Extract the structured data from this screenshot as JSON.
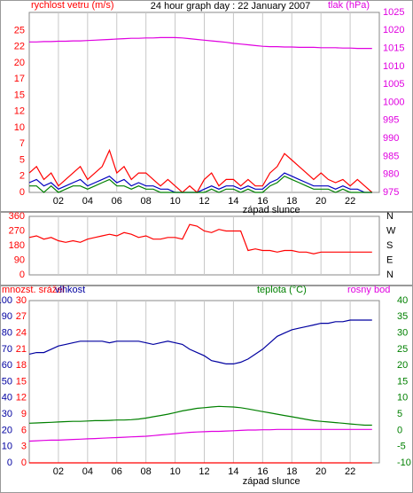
{
  "chart_data": [
    {
      "type": "line",
      "title": "24 hour graph day : 22 January 2007",
      "xlabel": "západ slunce",
      "x": [
        0,
        0.5,
        1,
        1.5,
        2,
        2.5,
        3,
        3.5,
        4,
        4.5,
        5,
        5.5,
        6,
        6.5,
        7,
        7.5,
        8,
        8.5,
        9,
        9.5,
        10,
        10.5,
        11,
        11.5,
        12,
        12.5,
        13,
        13.5,
        14,
        14.5,
        15,
        15.5,
        16,
        16.5,
        17,
        17.5,
        18,
        18.5,
        19,
        19.5,
        20,
        20.5,
        21,
        21.5,
        22,
        22.5,
        23,
        23.5
      ],
      "xlim": [
        0,
        24
      ],
      "xgrid": true,
      "xticks": [
        {
          "value": 2,
          "label": "02"
        },
        {
          "value": 4,
          "label": "04"
        },
        {
          "value": 6,
          "label": "06"
        },
        {
          "value": 8,
          "label": "08"
        },
        10,
        12,
        14,
        16,
        18,
        20,
        22
      ],
      "ylim": [
        0,
        27.8
      ],
      "yticks": [
        0,
        {
          "value": 2.5,
          "label": "2"
        },
        5,
        {
          "value": 7.5,
          "label": "7"
        },
        10,
        {
          "value": 12.5,
          "label": "12"
        },
        15,
        {
          "value": 17.5,
          "label": "17"
        },
        20,
        {
          "value": 22.5,
          "label": "22"
        },
        25
      ],
      "y2lim": [
        975,
        1025
      ],
      "y2ticks": [
        975,
        980,
        985,
        990,
        995,
        1000,
        1005,
        1010,
        1015,
        1020,
        1025
      ],
      "series": [
        {
          "name": "rychlost vetru (m/s)",
          "color": "#ff0000",
          "values": [
            3,
            4,
            2,
            3,
            1,
            2,
            3,
            4,
            2,
            3,
            4,
            6.5,
            3,
            4,
            2,
            3,
            3,
            2,
            1,
            2,
            1,
            0,
            1,
            0,
            2,
            3,
            1,
            2,
            2,
            1,
            2,
            1,
            1,
            3,
            4,
            6,
            5,
            4,
            3,
            2,
            3,
            2,
            1.5,
            2,
            1,
            2,
            1,
            0
          ]
        },
        {
          "color": "#0000c0",
          "values": [
            1.5,
            2,
            1,
            1.5,
            0.5,
            1,
            1.5,
            2,
            1,
            1.5,
            2,
            2.5,
            1.5,
            2,
            1,
            1.5,
            1,
            1,
            0.5,
            0.5,
            0,
            0,
            0,
            0,
            0.5,
            1,
            0.5,
            1,
            1,
            0.5,
            1,
            0.5,
            0.5,
            1.5,
            2,
            3,
            2.5,
            2,
            1.5,
            1,
            1,
            1,
            0.5,
            1,
            0.5,
            0.5,
            0,
            0
          ]
        },
        {
          "color": "#008000",
          "values": [
            1,
            1,
            0,
            1,
            0,
            0.5,
            1,
            1,
            0.5,
            1,
            1.5,
            2,
            1,
            1,
            0.5,
            1,
            0.5,
            0.5,
            0,
            0,
            0,
            0,
            0,
            0,
            0,
            0.5,
            0,
            0.5,
            0.5,
            0,
            0.5,
            0,
            0,
            1,
            1.5,
            2.5,
            2,
            1.5,
            1,
            0.5,
            0.5,
            0.5,
            0,
            0.5,
            0,
            0,
            0,
            0
          ]
        },
        {
          "name": "tlak (hPa)",
          "color": "#e000e0",
          "axis": "y2",
          "values": [
            1016.8,
            1016.8,
            1016.9,
            1016.9,
            1017,
            1017,
            1017.1,
            1017.1,
            1017.2,
            1017.3,
            1017.4,
            1017.5,
            1017.6,
            1017.7,
            1017.8,
            1017.8,
            1017.9,
            1017.9,
            1018,
            1018,
            1018,
            1017.9,
            1017.7,
            1017.5,
            1017.3,
            1017.1,
            1016.9,
            1016.7,
            1016.4,
            1016.2,
            1016,
            1015.8,
            1015.6,
            1015.5,
            1015.5,
            1015.4,
            1015.4,
            1015.3,
            1015.3,
            1015.3,
            1015.2,
            1015.2,
            1015.2,
            1015.1,
            1015.1,
            1015,
            1015,
            1015
          ]
        }
      ]
    },
    {
      "type": "line",
      "x": [
        0,
        0.5,
        1,
        1.5,
        2,
        2.5,
        3,
        3.5,
        4,
        4.5,
        5,
        5.5,
        6,
        6.5,
        7,
        7.5,
        8,
        8.5,
        9,
        9.5,
        10,
        10.5,
        11,
        11.5,
        12,
        12.5,
        13,
        13.5,
        14,
        14.5,
        15,
        15.5,
        16,
        16.5,
        17,
        17.5,
        18,
        18.5,
        19,
        19.5,
        20,
        20.5,
        21,
        21.5,
        22,
        22.5,
        23,
        23.5
      ],
      "xlim": [
        0,
        24
      ],
      "xgrid": true,
      "xticks": [
        {
          "value": 2,
          "label": "02"
        },
        {
          "value": 4,
          "label": "04"
        },
        {
          "value": 6,
          "label": "06"
        },
        {
          "value": 8,
          "label": "08"
        },
        10,
        12,
        14,
        16,
        18,
        20,
        22
      ],
      "ylim": [
        0,
        360
      ],
      "yticks": [
        0,
        90,
        180,
        270,
        360
      ],
      "y2lim": [
        0,
        360
      ],
      "y2ticks": [
        {
          "value": 0,
          "label": "N"
        },
        {
          "value": 90,
          "label": "E"
        },
        {
          "value": 180,
          "label": "S"
        },
        {
          "value": 270,
          "label": "W"
        },
        {
          "value": 360,
          "label": "N"
        }
      ],
      "series": [
        {
          "color": "#ff0000",
          "values": [
            230,
            240,
            220,
            230,
            210,
            200,
            210,
            200,
            220,
            230,
            240,
            250,
            240,
            260,
            250,
            230,
            240,
            220,
            220,
            230,
            230,
            220,
            310,
            300,
            270,
            260,
            280,
            270,
            270,
            270,
            150,
            160,
            150,
            150,
            140,
            150,
            150,
            140,
            140,
            130,
            140,
            140,
            140,
            140,
            140,
            140,
            140,
            140
          ]
        }
      ]
    },
    {
      "type": "line",
      "xlabel": "západ slunce",
      "x": [
        0,
        0.5,
        1,
        1.5,
        2,
        2.5,
        3,
        3.5,
        4,
        4.5,
        5,
        5.5,
        6,
        6.5,
        7,
        7.5,
        8,
        8.5,
        9,
        9.5,
        10,
        10.5,
        11,
        11.5,
        12,
        12.5,
        13,
        13.5,
        14,
        14.5,
        15,
        15.5,
        16,
        16.5,
        17,
        17.5,
        18,
        18.5,
        19,
        19.5,
        20,
        20.5,
        21,
        21.5,
        22,
        22.5,
        23,
        23.5
      ],
      "xlim": [
        0,
        24
      ],
      "xgrid": true,
      "xticks": [
        {
          "value": 2,
          "label": "02"
        },
        {
          "value": 4,
          "label": "04"
        },
        {
          "value": 6,
          "label": "06"
        },
        {
          "value": 8,
          "label": "08"
        },
        10,
        12,
        14,
        16,
        18,
        20,
        22
      ],
      "ylim": [
        0,
        100
      ],
      "yticks": [
        0,
        10,
        20,
        30,
        40,
        50,
        60,
        70,
        80,
        90,
        100
      ],
      "y3lim": [
        0,
        30
      ],
      "y3ticks": [
        0,
        3,
        6,
        9,
        12,
        15,
        18,
        21,
        24,
        27,
        30
      ],
      "y2lim": [
        -10,
        40
      ],
      "y2ticks": [
        -10,
        -5,
        0,
        5,
        10,
        15,
        20,
        25,
        30,
        35,
        40
      ],
      "series": [
        {
          "name": "mnozst. srážel",
          "color": "#ff0000",
          "axis": "y3",
          "values": [
            0,
            0,
            0,
            0,
            0,
            0,
            0,
            0,
            0,
            0,
            0,
            0,
            0,
            0,
            0,
            0,
            0,
            0,
            0,
            0,
            0,
            0,
            0,
            0,
            0,
            0,
            0,
            0,
            0,
            0,
            0,
            0,
            0,
            0,
            0,
            0,
            0,
            0,
            0,
            0,
            0,
            0,
            0,
            0,
            0,
            0,
            0,
            0
          ]
        },
        {
          "name": "vlhkost",
          "color": "#0000a0",
          "values": [
            67,
            68,
            68,
            70,
            72,
            73,
            74,
            75,
            75,
            75,
            75,
            74,
            75,
            75,
            75,
            75,
            74,
            73,
            74,
            75,
            74,
            73,
            70,
            68,
            66,
            63,
            62,
            61,
            61,
            62,
            64,
            67,
            70,
            74,
            78,
            80,
            82,
            83,
            84,
            85,
            86,
            86,
            87,
            87,
            88,
            88,
            88,
            88
          ]
        },
        {
          "name": "teplota (°C)",
          "color": "#008000",
          "axis": "y2",
          "values": [
            2.2,
            2.3,
            2.4,
            2.5,
            2.6,
            2.7,
            2.8,
            2.8,
            2.9,
            3,
            3,
            3.1,
            3.2,
            3.2,
            3.3,
            3.5,
            3.8,
            4.2,
            4.6,
            5,
            5.5,
            6,
            6.4,
            6.8,
            7,
            7.2,
            7.4,
            7.3,
            7.2,
            7,
            6.6,
            6.2,
            5.8,
            5.4,
            5,
            4.6,
            4.2,
            3.8,
            3.4,
            3,
            2.8,
            2.6,
            2.4,
            2.2,
            2,
            1.8,
            1.6,
            1.6
          ]
        },
        {
          "name": "rosny bod",
          "color": "#e000e0",
          "axis": "y2",
          "values": [
            -3.3,
            -3.2,
            -3.1,
            -3,
            -3,
            -2.9,
            -2.8,
            -2.7,
            -2.6,
            -2.5,
            -2.4,
            -2.3,
            -2.2,
            -2.1,
            -2,
            -1.9,
            -1.8,
            -1.6,
            -1.4,
            -1.2,
            -1,
            -0.8,
            -0.6,
            -0.5,
            -0.4,
            -0.3,
            -0.3,
            -0.2,
            -0.1,
            0,
            0.1,
            0.1,
            0.2,
            0.2,
            0.3,
            0.3,
            0.3,
            0.3,
            0.3,
            0.3,
            0.3,
            0.3,
            0.3,
            0.3,
            0.3,
            0.3,
            0.3,
            0.3
          ]
        }
      ]
    }
  ]
}
